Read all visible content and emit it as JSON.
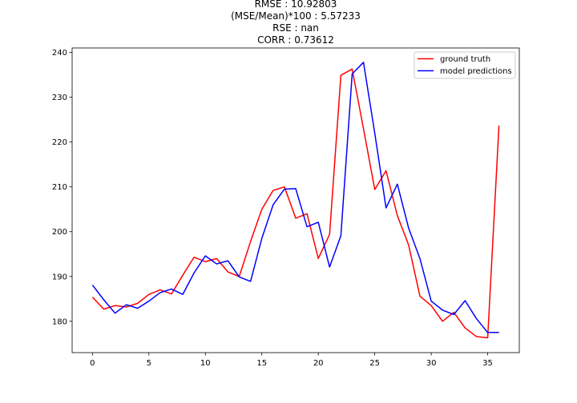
{
  "chart_data": {
    "type": "line",
    "title_lines": [
      "RMSE : 10.92803",
      "(MSE/Mean)*100 : 5.57233",
      "RSE : nan",
      "CORR : 0.73612"
    ],
    "xlabel": "",
    "ylabel": "",
    "xlim": [
      -1.8,
      37.8
    ],
    "ylim": [
      173.0,
      241.0
    ],
    "x_ticks": [
      0,
      5,
      10,
      15,
      20,
      25,
      30,
      35
    ],
    "y_ticks": [
      180,
      190,
      200,
      210,
      220,
      230,
      240
    ],
    "grid": false,
    "legend_position": "top-right",
    "x": [
      0,
      1,
      2,
      3,
      4,
      5,
      6,
      7,
      8,
      9,
      10,
      11,
      12,
      13,
      14,
      15,
      16,
      17,
      18,
      19,
      20,
      21,
      22,
      23,
      24,
      25,
      26,
      27,
      28,
      29,
      30,
      31,
      32,
      33,
      34,
      35,
      36
    ],
    "series": [
      {
        "name": "ground truth",
        "color": "#ff0000",
        "values": [
          185.4,
          182.7,
          183.5,
          183.2,
          184.0,
          186.0,
          187.0,
          186.1,
          190.3,
          194.3,
          193.3,
          194.0,
          191.0,
          190.0,
          197.8,
          205.0,
          209.2,
          210.0,
          203.0,
          204.0,
          194.0,
          199.4,
          234.9,
          236.3,
          223.0,
          209.4,
          213.6,
          203.6,
          197.0,
          185.6,
          183.5,
          180.0,
          182.0,
          178.5,
          176.6,
          176.3,
          223.7
        ]
      },
      {
        "name": "model predictions",
        "color": "#0000ff",
        "values": [
          188.1,
          184.8,
          181.8,
          183.7,
          182.9,
          184.5,
          186.4,
          187.2,
          186.0,
          190.8,
          194.6,
          192.8,
          193.5,
          189.9,
          188.9,
          198.5,
          206.0,
          209.5,
          209.6,
          201.1,
          202.1,
          192.1,
          199.1,
          235.2,
          237.8,
          222.0,
          205.3,
          210.6,
          200.8,
          194.0,
          184.5,
          182.5,
          181.5,
          184.6,
          180.6,
          177.5,
          177.5
        ]
      }
    ]
  }
}
